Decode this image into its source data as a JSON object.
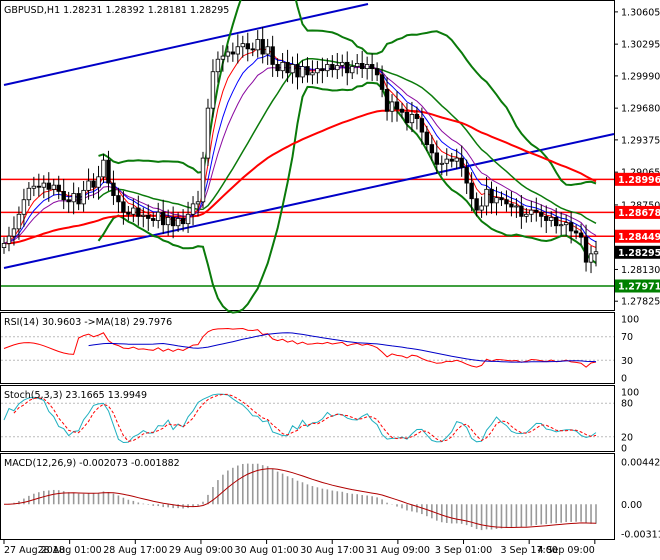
{
  "colors": {
    "bull_candle": "#ffffff",
    "bear_candle": "#000000",
    "bollinger": "#0a7a0a",
    "trendline": "#0000c8",
    "horizontal_red": "#ff0000",
    "support_green": "#008000",
    "ma_red": "#ff0000",
    "ma_blue": "#0000ff",
    "ma_purple": "#8a0aa0",
    "ma_green": "#0a8a0a",
    "rsi_line": "#ff0000",
    "rsi_ma": "#0000c8",
    "stoch_main": "#20b0c0",
    "stoch_signal": "#ff0000",
    "macd_line": "#b00000",
    "macd_hist": "#999999"
  },
  "chart_data": [
    {
      "type": "candlestick",
      "title": "GBPUSD,H1  1.28231 1.28392 1.28181 1.28295",
      "symbol": "GBPUSD",
      "timeframe": "H1",
      "ohlc_last": {
        "open": 1.28231,
        "high": 1.28392,
        "low": 1.28181,
        "close": 1.28295
      },
      "ylim": [
        1.2775,
        1.307
      ],
      "yticks": [
        "1.30605",
        "1.30295",
        "1.29990",
        "1.29680",
        "1.29375",
        "1.29065",
        "1.28750",
        "1.28445",
        "1.28130",
        "1.27825"
      ],
      "xtick_labels": [
        "27 Aug 2018",
        "28 Aug 01:00",
        "28 Aug 17:00",
        "29 Aug 09:00",
        "30 Aug 01:00",
        "30 Aug 17:00",
        "31 Aug 09:00",
        "3 Sep 01:00",
        "3 Sep 17:00",
        "4 Sep 09:00"
      ],
      "price_levels": [
        {
          "value": 1.28996,
          "label": "1.28996",
          "color": "#ff0000"
        },
        {
          "value": 1.28678,
          "label": "1.28678",
          "color": "#ff0000"
        },
        {
          "value": 1.28449,
          "label": "1.28449",
          "color": "#ff0000"
        },
        {
          "value": 1.28295,
          "label": "1.28295",
          "color": "#000000"
        },
        {
          "value": 1.27971,
          "label": "1.27971",
          "color": "#008000"
        }
      ],
      "closes": [
        1.2838,
        1.2845,
        1.2852,
        1.2866,
        1.288,
        1.2891,
        1.2893,
        1.2892,
        1.2896,
        1.289,
        1.2894,
        1.2888,
        1.288,
        1.2878,
        1.2886,
        1.2876,
        1.2889,
        1.2898,
        1.2892,
        1.2902,
        1.2918,
        1.2896,
        1.2884,
        1.2878,
        1.2868,
        1.2866,
        1.2872,
        1.2864,
        1.2865,
        1.2862,
        1.286,
        1.2868,
        1.2856,
        1.2863,
        1.2855,
        1.2862,
        1.2857,
        1.2866,
        1.2876,
        1.2878,
        1.292,
        1.2968,
        1.3003,
        1.3015,
        1.3018,
        1.3022,
        1.302,
        1.3027,
        1.303,
        1.3025,
        1.3024,
        1.3034,
        1.302,
        1.3027,
        1.301,
        1.3004,
        1.3012,
        1.3002,
        1.301,
        1.2998,
        1.3008,
        1.3,
        1.3002,
        1.3006,
        1.3004,
        1.301,
        1.3005,
        1.3009,
        1.3012,
        1.3002,
        1.3008,
        1.3011,
        1.3006,
        1.301,
        1.3006,
        1.3,
        1.2986,
        1.2965,
        1.2974,
        1.2967,
        1.2964,
        1.2954,
        1.2962,
        1.2958,
        1.2945,
        1.2933,
        1.2925,
        1.2914,
        1.2915,
        1.2919,
        1.2917,
        1.292,
        1.2911,
        1.2896,
        1.2881,
        1.287,
        1.2874,
        1.289,
        1.2877,
        1.2882,
        1.288,
        1.2876,
        1.2873,
        1.2874,
        1.2864,
        1.2866,
        1.287,
        1.2868,
        1.2864,
        1.286,
        1.2863,
        1.2855,
        1.2856,
        1.2858,
        1.285,
        1.2848,
        1.2844,
        1.282,
        1.2828,
        1.283
      ]
    },
    {
      "type": "line",
      "title": "RSI(14) 30.9603  ->MA(18) 29.7976",
      "ylim": [
        0,
        100
      ],
      "yticks": [
        "100",
        "70",
        "30",
        "0"
      ],
      "series": [
        {
          "name": "RSI(14)",
          "last": 30.9603
        },
        {
          "name": "MA(18)",
          "last": 29.7976
        }
      ]
    },
    {
      "type": "line",
      "title": "Stoch(5,3,3) 23.1665 13.9949",
      "ylim": [
        0,
        100
      ],
      "yticks": [
        "100",
        "80",
        "20",
        "0"
      ],
      "series": [
        {
          "name": "Stoch main",
          "last": 23.1665
        },
        {
          "name": "Stoch signal",
          "last": 13.9949
        }
      ]
    },
    {
      "type": "bar",
      "title": "MACD(12,26,9) -0.002073 -0.001882",
      "ylim": [
        -0.00311,
        0.00442
      ],
      "yticks": [
        "0.00442",
        "0.00",
        "-0.00311"
      ],
      "series": [
        {
          "name": "MACD histogram",
          "last": -0.002073
        },
        {
          "name": "Signal",
          "last": -0.001882
        }
      ]
    }
  ]
}
